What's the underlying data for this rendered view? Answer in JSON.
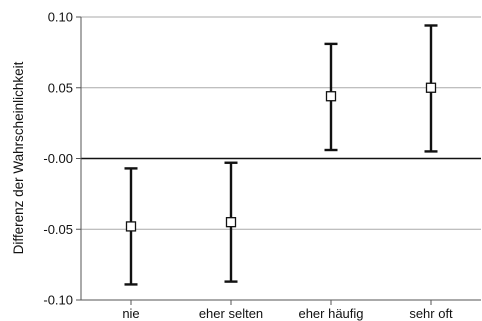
{
  "chart_data": {
    "type": "scatter",
    "subtype": "point-with-error-bars",
    "title": "",
    "xlabel": "",
    "ylabel": "Differenz der Wahrscheinlichkeit",
    "categories": [
      "nie",
      "eher selten",
      "eher häufig",
      "sehr oft"
    ],
    "series": [
      {
        "values": [
          -0.048,
          -0.045,
          0.044,
          0.05
        ],
        "lower": [
          -0.089,
          -0.087,
          0.006,
          0.005
        ],
        "upper": [
          -0.007,
          -0.003,
          0.081,
          0.094
        ]
      }
    ],
    "ylim": [
      -0.1,
      0.1
    ],
    "yticks": [
      0.1,
      0.05,
      0.0,
      -0.05,
      -0.1
    ],
    "ytick_labels": [
      "0.10",
      "0.05",
      "-0.00",
      "-0.05",
      "-0.10"
    ],
    "reference_line": 0,
    "grid": "horizontal",
    "legend": "none",
    "colors": {
      "axis": "#555555",
      "grid": "#aaaaaa",
      "zero_line": "#111111",
      "error_bar": "#111111",
      "marker_fill": "#ffffff",
      "marker_stroke": "#111111"
    }
  }
}
